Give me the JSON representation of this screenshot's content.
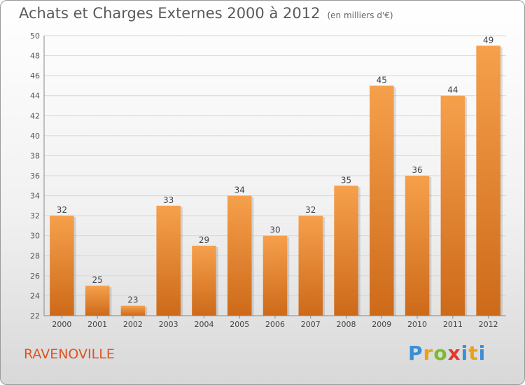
{
  "header": {
    "title": "Achats et Charges Externes 2000 à 2012",
    "unit": "(en milliers d'€)"
  },
  "footer": {
    "town": "RAVENOVILLE",
    "logo_letters": [
      "P",
      "r",
      "o",
      "x",
      "i",
      "t",
      "i"
    ]
  },
  "colors": {
    "bar_top": "#f6a04c",
    "bar_bottom": "#cd6a1a",
    "grid": "#d6d6d6",
    "town": "#e0511f"
  },
  "chart_data": {
    "type": "bar",
    "title": "Achats et Charges Externes 2000 à 2012",
    "subtitle": "(en milliers d'€)",
    "categories": [
      "2000",
      "2001",
      "2002",
      "2003",
      "2004",
      "2005",
      "2006",
      "2007",
      "2008",
      "2009",
      "2010",
      "2011",
      "2012"
    ],
    "values": [
      32,
      25,
      23,
      33,
      29,
      34,
      30,
      32,
      35,
      45,
      36,
      44,
      49
    ],
    "ylim": [
      22,
      50
    ],
    "yticks": [
      22,
      24,
      26,
      28,
      30,
      32,
      34,
      36,
      38,
      40,
      42,
      44,
      46,
      48,
      50
    ],
    "grid": true,
    "data_labels": true
  }
}
